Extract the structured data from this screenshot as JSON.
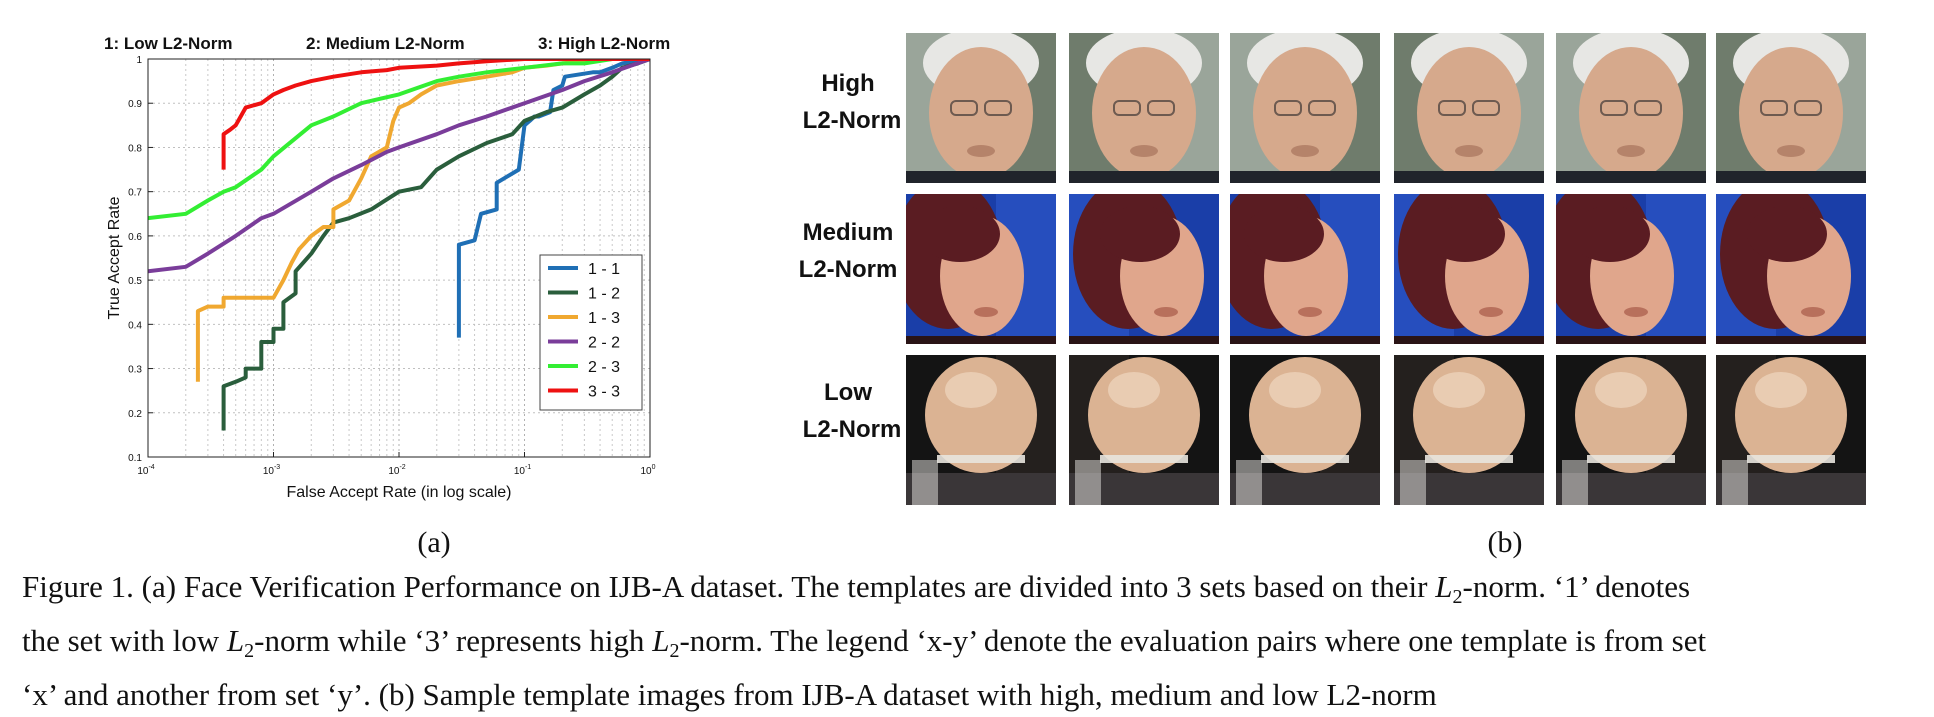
{
  "chart_data": {
    "type": "line",
    "xscale": "log",
    "xlim": [
      0.0001,
      1
    ],
    "ylim": [
      0.1,
      1
    ],
    "xlabel": "False Accept Rate (in log scale)",
    "ylabel": "True Accept Rate",
    "top_labels": [
      "1: Low L2-Norm",
      "2: Medium L2-Norm",
      "3: High L2-Norm"
    ],
    "y_ticks": [
      "0.1",
      "0.2",
      "0.3",
      "0.4",
      "0.5",
      "0.6",
      "0.7",
      "0.8",
      "0.9",
      "1"
    ],
    "x_ticks": [
      {
        "base": "10",
        "exp": "-4"
      },
      {
        "base": "10",
        "exp": "-3"
      },
      {
        "base": "10",
        "exp": "-2"
      },
      {
        "base": "10",
        "exp": "-1"
      },
      {
        "base": "10",
        "exp": "0"
      }
    ],
    "grid": true,
    "legend_position": "bottom-right",
    "series": [
      {
        "name": "1 - 1",
        "color": "#1f6fb5",
        "x": [
          0.03,
          0.03,
          0.04,
          0.045,
          0.06,
          0.06,
          0.09,
          0.1,
          0.11,
          0.12,
          0.13,
          0.16,
          0.17,
          0.2,
          0.21,
          0.35,
          0.4,
          0.5,
          0.6,
          0.8,
          1.0
        ],
        "y": [
          0.37,
          0.58,
          0.59,
          0.65,
          0.66,
          0.72,
          0.75,
          0.85,
          0.86,
          0.87,
          0.87,
          0.88,
          0.93,
          0.94,
          0.96,
          0.97,
          0.97,
          0.98,
          0.99,
          0.995,
          1.0
        ]
      },
      {
        "name": "1 - 2",
        "color": "#2a5e3c",
        "x": [
          0.0004,
          0.0004,
          0.0005,
          0.0006,
          0.0006,
          0.0008,
          0.0008,
          0.001,
          0.001,
          0.0012,
          0.0012,
          0.0015,
          0.0015,
          0.002,
          0.0025,
          0.003,
          0.004,
          0.006,
          0.01,
          0.015,
          0.02,
          0.03,
          0.05,
          0.08,
          0.1,
          0.15,
          0.2,
          0.3,
          0.4,
          0.5,
          0.6,
          0.8,
          1.0
        ],
        "y": [
          0.16,
          0.26,
          0.27,
          0.28,
          0.3,
          0.3,
          0.36,
          0.36,
          0.39,
          0.39,
          0.45,
          0.47,
          0.52,
          0.56,
          0.6,
          0.63,
          0.64,
          0.66,
          0.7,
          0.71,
          0.75,
          0.78,
          0.81,
          0.83,
          0.86,
          0.88,
          0.89,
          0.92,
          0.94,
          0.96,
          0.98,
          0.99,
          1.0
        ]
      },
      {
        "name": "1 - 3",
        "color": "#f0a830",
        "x": [
          0.00025,
          0.00025,
          0.0003,
          0.0004,
          0.0004,
          0.001,
          0.0012,
          0.0014,
          0.0016,
          0.002,
          0.0025,
          0.003,
          0.003,
          0.004,
          0.005,
          0.006,
          0.008,
          0.009,
          0.01,
          0.012,
          0.015,
          0.02,
          0.03,
          0.05,
          0.08,
          0.1,
          0.15,
          0.2,
          0.3,
          0.5,
          1.0
        ],
        "y": [
          0.27,
          0.43,
          0.44,
          0.44,
          0.46,
          0.46,
          0.5,
          0.54,
          0.57,
          0.6,
          0.62,
          0.62,
          0.66,
          0.68,
          0.73,
          0.78,
          0.8,
          0.86,
          0.89,
          0.9,
          0.92,
          0.94,
          0.95,
          0.96,
          0.97,
          0.98,
          0.985,
          0.99,
          0.995,
          1.0,
          1.0
        ]
      },
      {
        "name": "2 - 2",
        "color": "#7a3d9a",
        "x": [
          0.0001,
          0.0002,
          0.0003,
          0.0005,
          0.0008,
          0.001,
          0.002,
          0.003,
          0.005,
          0.008,
          0.01,
          0.02,
          0.03,
          0.05,
          0.1,
          0.2,
          0.3,
          0.5,
          1.0
        ],
        "y": [
          0.52,
          0.53,
          0.56,
          0.6,
          0.64,
          0.65,
          0.7,
          0.73,
          0.76,
          0.79,
          0.8,
          0.83,
          0.85,
          0.87,
          0.9,
          0.93,
          0.95,
          0.97,
          1.0
        ]
      },
      {
        "name": "2 - 3",
        "color": "#33ee33",
        "x": [
          0.0001,
          0.0002,
          0.0003,
          0.0004,
          0.0005,
          0.0008,
          0.001,
          0.002,
          0.003,
          0.005,
          0.01,
          0.02,
          0.03,
          0.05,
          0.1,
          0.2,
          0.3,
          0.5,
          1.0
        ],
        "y": [
          0.64,
          0.65,
          0.68,
          0.7,
          0.71,
          0.75,
          0.78,
          0.85,
          0.87,
          0.9,
          0.92,
          0.95,
          0.96,
          0.97,
          0.98,
          0.99,
          0.99,
          1.0,
          1.0
        ]
      },
      {
        "name": "3 - 3",
        "color": "#ee1111",
        "x": [
          0.0004,
          0.0004,
          0.00045,
          0.0005,
          0.0006,
          0.0008,
          0.001,
          0.0012,
          0.0015,
          0.002,
          0.003,
          0.005,
          0.008,
          0.01,
          0.02,
          0.03,
          0.05,
          0.1,
          0.2,
          0.3,
          0.5,
          1.0
        ],
        "y": [
          0.75,
          0.83,
          0.84,
          0.85,
          0.89,
          0.9,
          0.92,
          0.93,
          0.94,
          0.95,
          0.96,
          0.97,
          0.975,
          0.98,
          0.985,
          0.99,
          0.995,
          1.0,
          1.0,
          1.0,
          1.0,
          1.0
        ]
      }
    ]
  },
  "subfigure_labels": {
    "a": "(a)",
    "b": "(b)"
  },
  "faces_grid": {
    "row_labels": [
      {
        "line1": "High",
        "line2": "L2-Norm"
      },
      {
        "line1": "Medium",
        "line2": "L2-Norm"
      },
      {
        "line1": "Low",
        "line2": "L2-Norm"
      }
    ],
    "row_palettes": [
      {
        "bg": "#9aa59a",
        "bg2": "#5d6b58",
        "skin": "#d6a98c",
        "skin_dark": "#b5836a",
        "hair": "#e7e7e4",
        "shirt": "#20242b"
      },
      {
        "bg": "#1a3ea8",
        "bg2": "#2c55c8",
        "skin": "#e0a68c",
        "skin_dark": "#b8705c",
        "hair": "#5a1c22",
        "shirt": "#2a1416"
      },
      {
        "bg": "#141414",
        "bg2": "#2b2522",
        "skin": "#dbb393",
        "skin_dark": "#8e6a55",
        "hair": "#e8c8a8",
        "shirt": "#3a3638"
      }
    ]
  },
  "caption": {
    "p1": "Figure 1. (a) Face Verification Performance on IJB-A dataset.  The templates are divided into 3 sets based on their ",
    "L": "L",
    "sub2": "2",
    "p2": "-norm.  ‘1’ denotes",
    "p3": "the set with low ",
    "p4": "-norm while ‘3’ represents high ",
    "p5": "-norm. The legend ‘x-y’ denote the evaluation pairs where one template is from set",
    "p6": "‘x’ and another from set ‘y’. (b) Sample template images from IJB-A dataset with high, medium and low L2-norm"
  }
}
